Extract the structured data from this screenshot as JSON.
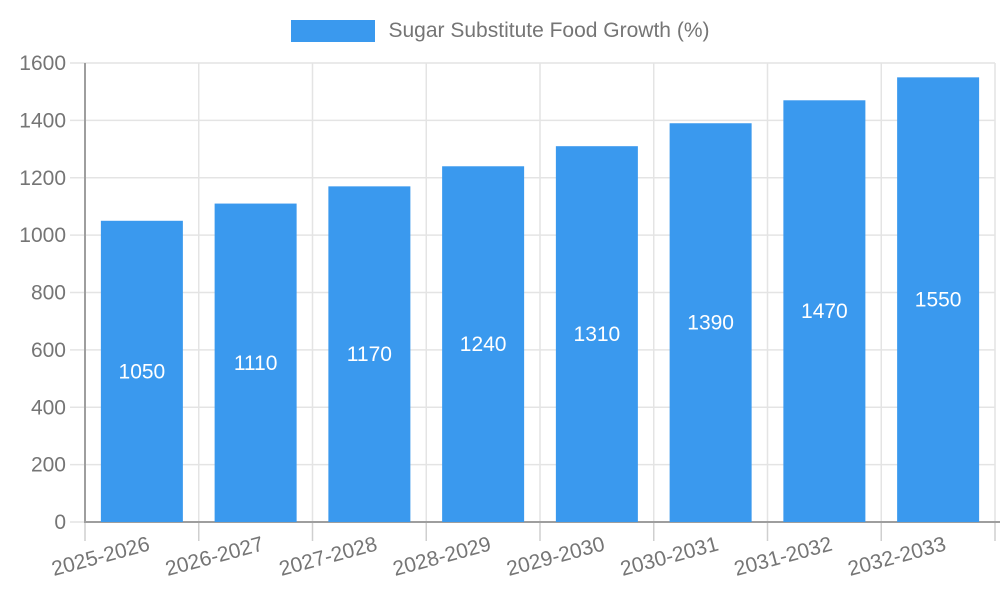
{
  "chart_data": {
    "type": "bar",
    "title": "Sugar Substitute Food Growth (%)",
    "categories": [
      "2025-2026",
      "2026-2027",
      "2027-2028",
      "2028-2029",
      "2029-2030",
      "2030-2031",
      "2031-2032",
      "2032-2033"
    ],
    "values": [
      1050,
      1110,
      1170,
      1240,
      1310,
      1390,
      1470,
      1550
    ],
    "xlabel": "",
    "ylabel": "",
    "ylim": [
      0,
      1600
    ],
    "yticks": [
      0,
      200,
      400,
      600,
      800,
      1000,
      1200,
      1400,
      1600
    ],
    "grid": true,
    "legend_position": "top-center",
    "x_label_rotation_deg": -15,
    "bar_label_position": "inside-center",
    "colors": {
      "bar": "#3A99EE",
      "bar_label": "#FFFFFF",
      "axis_text": "#757575",
      "grid_line": "#E4E4E4",
      "tick_line": "#CFCFCF",
      "axis_line": "#9E9E9E",
      "background": "#FFFFFF"
    }
  }
}
